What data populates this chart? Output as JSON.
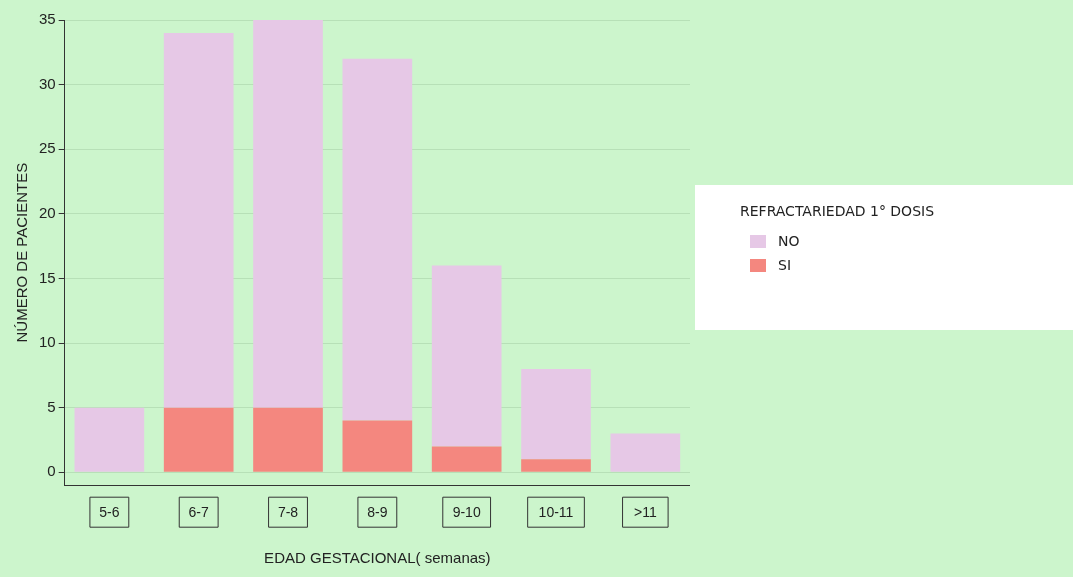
{
  "chart_data": {
    "type": "bar",
    "xlabel": "EDAD GESTACIONAL( semanas)",
    "ylabel": "NÚMERO DE PACIENTES",
    "legend_title": "REFRACTARIEDAD 1° DOSIS",
    "categories": [
      "5-6",
      "6-7",
      "7-8",
      "8-9",
      "9-10",
      "10-11",
      ">11"
    ],
    "series": [
      {
        "name": "SI",
        "color": "#f4877f",
        "values": [
          0,
          5,
          5,
          4,
          2,
          1,
          0
        ]
      },
      {
        "name": "NO",
        "color": "#e6c8e6",
        "values": [
          5,
          29,
          30,
          28,
          14,
          7,
          3
        ]
      }
    ],
    "stacked": true,
    "ylim": [
      -1,
      35
    ],
    "yticks": [
      0,
      5,
      10,
      15,
      20,
      25,
      30,
      35
    ],
    "grid": "y",
    "legend": "right"
  }
}
